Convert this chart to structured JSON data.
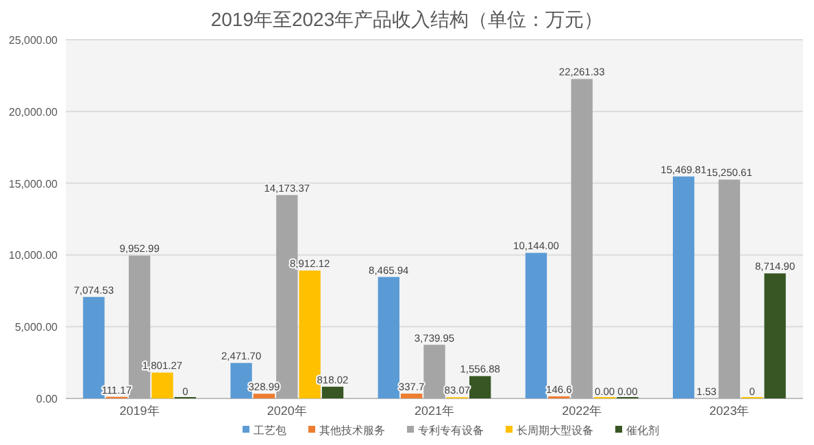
{
  "chart_data": {
    "type": "bar",
    "title": "2019年至2023年产品收入结构（单位：万元）",
    "categories": [
      "2019年",
      "2020年",
      "2021年",
      "2022年",
      "2023年"
    ],
    "series": [
      {
        "name": "工艺包",
        "color": "#5b9bd5",
        "values": [
          7074.53,
          2471.7,
          8465.94,
          10144.0,
          15469.81
        ],
        "value_labels": [
          "7,074.53",
          "2,471.70",
          "8,465.94",
          "10,144.00",
          "15,469.81"
        ]
      },
      {
        "name": "其他技术服务",
        "color": "#ed7d31",
        "values": [
          111.17,
          328.99,
          337.7,
          146.6,
          1.53
        ],
        "value_labels": [
          "111.17",
          "328.99",
          "337.7",
          "146.6",
          "1.53"
        ]
      },
      {
        "name": "专利专有设备",
        "color": "#a5a5a5",
        "values": [
          9952.99,
          14173.37,
          3739.95,
          22261.33,
          15250.61
        ],
        "value_labels": [
          "9,952.99",
          "14,173.37",
          "3,739.95",
          "22,261.33",
          "15,250.61"
        ]
      },
      {
        "name": "长周期大型设备",
        "color": "#ffc000",
        "values": [
          1801.27,
          8912.12,
          83.07,
          0,
          0
        ],
        "value_labels": [
          "1,801.27",
          "8,912.12",
          "83.07",
          "0.00",
          "0"
        ]
      },
      {
        "name": "催化剂",
        "color": "#375623",
        "values": [
          0,
          818.02,
          1556.88,
          0,
          8714.9
        ],
        "value_labels": [
          "0",
          "818.02",
          "1,556.88",
          "0.00",
          "8,714.90"
        ]
      }
    ],
    "ylim": [
      0,
      25000
    ],
    "yticks": [
      {
        "value": 0,
        "label": "0.00"
      },
      {
        "value": 5000,
        "label": "5,000.00"
      },
      {
        "value": 10000,
        "label": "10,000.00"
      },
      {
        "value": 15000,
        "label": "15,000.00"
      },
      {
        "value": 20000,
        "label": "20,000.00"
      },
      {
        "value": 25000,
        "label": "25,000.00"
      }
    ],
    "grid": "y",
    "legend": "bottom"
  }
}
